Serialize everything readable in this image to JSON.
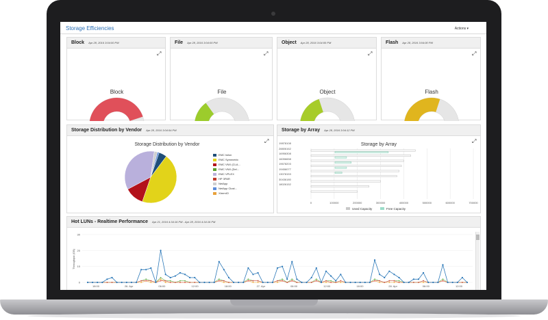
{
  "app": {
    "title": "Storage Efficiencies",
    "actions_label": "Actions ▾"
  },
  "colors": {
    "accent_blue": "#2a6fb6",
    "gauge_red": "#e0505a",
    "gauge_green": "#9ccc2c",
    "gauge_olive": "#a7cc2a",
    "gauge_yellow": "#e0b51e",
    "gauge_track": "#e6e6e6",
    "series_blue": "#2b78b8",
    "series_red": "#d9534f",
    "series_green": "#6ab04c",
    "series_orange": "#f0a830"
  },
  "gauges": [
    {
      "name": "Block",
      "date": "Apr 28, 2016 3:04:00 PM",
      "label": "Block",
      "value": 90,
      "min": "0",
      "max": "100",
      "color": "#e0505a"
    },
    {
      "name": "File",
      "date": "Apr 28, 2016 3:04:00 PM",
      "label": "File",
      "value": 30,
      "min": "0",
      "max": "100",
      "color": "#9ccc2c"
    },
    {
      "name": "Object",
      "date": "Apr 28, 2016 3:04:00 PM",
      "label": "Object",
      "value": 40,
      "min": "0",
      "max": "100",
      "color": "#a7cc2a"
    },
    {
      "name": "Flash",
      "date": "Apr 28, 2016 3:04:00 PM",
      "label": "Flash",
      "value": 60,
      "min": "0",
      "max": "100",
      "color": "#e0b51e"
    }
  ],
  "vendor": {
    "panel_title": "Storage Distribution by Vendor",
    "date": "Apr 28, 2016 3:04:54 PM",
    "chart_title": "Storage Distribution by Vendor",
    "legend": [
      {
        "label": "EMC Isilon",
        "color": "#1f4e79"
      },
      {
        "label": "EMC Symmetrix",
        "color": "#e2d31a"
      },
      {
        "label": "EMC VNX (CLA...",
        "color": "#b3121b"
      },
      {
        "label": "EMC VNX (Del...",
        "color": "#5aa02c"
      },
      {
        "label": "EMC VPLEX",
        "color": "#b9b0dc"
      },
      {
        "label": "HP 3PAR",
        "color": "#c0392b"
      },
      {
        "label": "NetApp",
        "color": "#cfcfcf"
      },
      {
        "label": "NetApp Clust...",
        "color": "#5b8bd9"
      },
      {
        "label": "XtremIO",
        "color": "#e8a13a"
      }
    ]
  },
  "array": {
    "panel_title": "Storage by Array",
    "date": "Apr 28, 2016 3:04:12 PM",
    "chart_title": "Storage by Array",
    "rows": [
      "19878108",
      "28806162",
      "16956308",
      "16056658",
      "19678203",
      "19456077",
      "13078153",
      "30436180",
      "18026152"
    ],
    "x_ticks": [
      "0",
      "100000",
      "200000",
      "300000",
      "400000",
      "500000",
      "600000",
      "700000"
    ],
    "legend_used": "Used Capacity",
    "legend_free": "Free Capacity"
  },
  "hotluns": {
    "panel_title": "Hot LUNs - Realtime Performance",
    "date": "Apr 21, 2016 4:34:16 PM - Apr 28, 2016 4:34:16 PM",
    "y_label": "Throughput (GB)",
    "y_ticks": [
      "0",
      "10",
      "20",
      "30"
    ],
    "x_ticks": [
      "18:00",
      "26. Apr",
      "06:00",
      "12:00",
      "18:00",
      "27. Apr",
      "06:00",
      "12:00",
      "18:00",
      "28. Apr",
      "06:00",
      "12:00"
    ]
  },
  "chart_data": [
    {
      "type": "gauge",
      "title": "Block",
      "value": 90,
      "ylim": [
        0,
        100
      ]
    },
    {
      "type": "gauge",
      "title": "File",
      "value": 30,
      "ylim": [
        0,
        100
      ]
    },
    {
      "type": "gauge",
      "title": "Object",
      "value": 40,
      "ylim": [
        0,
        100
      ]
    },
    {
      "type": "gauge",
      "title": "Flash",
      "value": 60,
      "ylim": [
        0,
        100
      ]
    },
    {
      "type": "pie",
      "title": "Storage Distribution by Vendor",
      "categories": [
        "EMC Isilon",
        "EMC Symmetrix",
        "EMC VNX (CLA...",
        "EMC VNX (Del...",
        "EMC VPLEX",
        "HP 3PAR",
        "NetApp",
        "NetApp Clust...",
        "XtremIO"
      ],
      "values": [
        5,
        45,
        12,
        0,
        35,
        0,
        2,
        1,
        0
      ]
    },
    {
      "type": "bar",
      "title": "Storage by Array",
      "orientation": "horizontal",
      "categories": [
        "19878108",
        "28806162",
        "16956308",
        "16056658",
        "19678203",
        "19456077",
        "13078153",
        "30436180",
        "18026152"
      ],
      "series": [
        {
          "name": "Used Capacity",
          "values": [
            450000,
            430000,
            400000,
            390000,
            380000,
            370000,
            300000,
            250000,
            200000
          ]
        },
        {
          "name": "Free Capacity",
          "values": [
            230000,
            50000,
            70000,
            50000,
            30000,
            0,
            0,
            0,
            0
          ]
        }
      ],
      "xlim": [
        0,
        700000
      ]
    },
    {
      "type": "line",
      "title": "Hot LUNs - Realtime Performance",
      "ylabel": "Throughput (GB)",
      "ylim": [
        0,
        30
      ],
      "series": [
        {
          "name": "",
          "color": "#2b78b8",
          "values": [
            0,
            0,
            0,
            0,
            2,
            3,
            0,
            0,
            0,
            0,
            0,
            8,
            8,
            9,
            0,
            20,
            5,
            3,
            4,
            6,
            5,
            3,
            3,
            0,
            0,
            0,
            0,
            13,
            8,
            3,
            0,
            0,
            0,
            9,
            5,
            6,
            0,
            0,
            0,
            9,
            10,
            2,
            13,
            2,
            0,
            0,
            3,
            9,
            0,
            7,
            4,
            1,
            5,
            0,
            0,
            0,
            0,
            0,
            0,
            14,
            5,
            3,
            7,
            5,
            3,
            0,
            0,
            2,
            2,
            6,
            0,
            0,
            0,
            11,
            0,
            0,
            0,
            3,
            0
          ]
        },
        {
          "name": "",
          "color": "#d9534f",
          "values": [
            0,
            0,
            0,
            0,
            0,
            0,
            0,
            0,
            0,
            0,
            0,
            1,
            1,
            1,
            0,
            1,
            1,
            0,
            0,
            0,
            0,
            0,
            0,
            0,
            0,
            0,
            0,
            1,
            1,
            0,
            0,
            0,
            0,
            1,
            1,
            1,
            0,
            0,
            0,
            1,
            1,
            0,
            1,
            0,
            0,
            0,
            0,
            1,
            0,
            1,
            0,
            0,
            1,
            0,
            0,
            0,
            0,
            0,
            0,
            1,
            1,
            0,
            1,
            1,
            0,
            0,
            0,
            0,
            0,
            1,
            0,
            0,
            0,
            1,
            0,
            0,
            0,
            0,
            0
          ]
        },
        {
          "name": "",
          "color": "#6ab04c",
          "values": [
            0,
            0,
            0,
            0,
            0,
            0,
            0,
            0,
            0,
            0,
            0,
            1,
            2,
            1,
            0,
            3,
            1,
            1,
            0,
            1,
            1,
            0,
            0,
            0,
            0,
            0,
            0,
            2,
            1,
            0,
            0,
            0,
            0,
            2,
            1,
            1,
            0,
            0,
            0,
            1,
            2,
            0,
            2,
            0,
            0,
            0,
            0,
            2,
            0,
            1,
            1,
            0,
            1,
            0,
            0,
            0,
            0,
            0,
            0,
            2,
            1,
            0,
            1,
            1,
            1,
            0,
            0,
            0,
            0,
            1,
            0,
            0,
            0,
            2,
            0,
            0,
            0,
            0,
            0
          ]
        },
        {
          "name": "",
          "color": "#f0a830",
          "values": [
            0,
            0,
            0,
            0,
            0,
            0,
            0,
            0,
            0,
            0,
            0,
            0,
            1,
            0,
            0,
            2,
            0,
            0,
            0,
            0,
            0,
            0,
            0,
            0,
            0,
            0,
            0,
            1,
            0,
            0,
            0,
            0,
            0,
            1,
            0,
            0,
            0,
            0,
            0,
            0,
            1,
            0,
            1,
            0,
            0,
            0,
            0,
            1,
            0,
            0,
            0,
            0,
            0,
            0,
            0,
            0,
            0,
            0,
            0,
            1,
            0,
            0,
            0,
            0,
            0,
            0,
            0,
            0,
            0,
            0,
            0,
            0,
            0,
            1,
            0,
            0,
            0,
            0,
            0
          ]
        }
      ]
    }
  ]
}
